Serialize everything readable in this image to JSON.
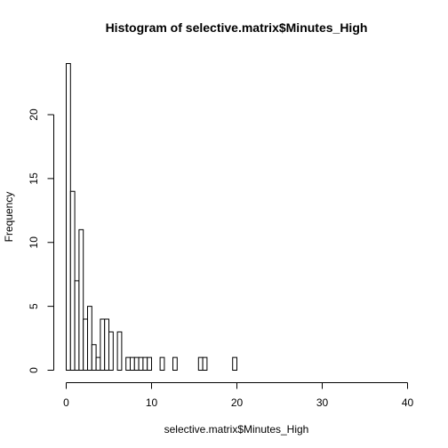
{
  "chart_data": {
    "type": "bar",
    "title": "Histogram of selective.matrix$Minutes_High",
    "xlabel": "selective.matrix$Minutes_High",
    "ylabel": "Frequency",
    "xlim": [
      0,
      40
    ],
    "ylim": [
      0,
      24
    ],
    "bin_width": 0.5,
    "x_ticks": [
      0,
      10,
      20,
      30,
      40
    ],
    "y_ticks": [
      0,
      5,
      10,
      15,
      20
    ],
    "grid": false,
    "bins": [
      {
        "start": 0.0,
        "end": 0.5,
        "count": 24
      },
      {
        "start": 0.5,
        "end": 1.0,
        "count": 14
      },
      {
        "start": 1.0,
        "end": 1.5,
        "count": 7
      },
      {
        "start": 1.5,
        "end": 2.0,
        "count": 11
      },
      {
        "start": 2.0,
        "end": 2.5,
        "count": 4
      },
      {
        "start": 2.5,
        "end": 3.0,
        "count": 5
      },
      {
        "start": 3.0,
        "end": 3.5,
        "count": 2
      },
      {
        "start": 3.5,
        "end": 4.0,
        "count": 1
      },
      {
        "start": 4.0,
        "end": 4.5,
        "count": 4
      },
      {
        "start": 4.5,
        "end": 5.0,
        "count": 4
      },
      {
        "start": 5.0,
        "end": 5.5,
        "count": 3
      },
      {
        "start": 5.5,
        "end": 6.0,
        "count": 0
      },
      {
        "start": 6.0,
        "end": 6.5,
        "count": 3
      },
      {
        "start": 6.5,
        "end": 7.0,
        "count": 0
      },
      {
        "start": 7.0,
        "end": 7.5,
        "count": 1
      },
      {
        "start": 7.5,
        "end": 8.0,
        "count": 1
      },
      {
        "start": 8.0,
        "end": 8.5,
        "count": 1
      },
      {
        "start": 8.5,
        "end": 9.0,
        "count": 1
      },
      {
        "start": 9.0,
        "end": 9.5,
        "count": 1
      },
      {
        "start": 9.5,
        "end": 10.0,
        "count": 1
      },
      {
        "start": 10.0,
        "end": 10.5,
        "count": 0
      },
      {
        "start": 10.5,
        "end": 11.0,
        "count": 0
      },
      {
        "start": 11.0,
        "end": 11.5,
        "count": 1
      },
      {
        "start": 11.5,
        "end": 12.0,
        "count": 0
      },
      {
        "start": 12.0,
        "end": 12.5,
        "count": 0
      },
      {
        "start": 12.5,
        "end": 13.0,
        "count": 1
      },
      {
        "start": 13.0,
        "end": 13.5,
        "count": 0
      },
      {
        "start": 13.5,
        "end": 14.0,
        "count": 0
      },
      {
        "start": 14.0,
        "end": 14.5,
        "count": 0
      },
      {
        "start": 14.5,
        "end": 15.0,
        "count": 0
      },
      {
        "start": 15.0,
        "end": 15.5,
        "count": 0
      },
      {
        "start": 15.5,
        "end": 16.0,
        "count": 1
      },
      {
        "start": 16.0,
        "end": 16.5,
        "count": 1
      },
      {
        "start": 16.5,
        "end": 17.0,
        "count": 0
      },
      {
        "start": 17.0,
        "end": 17.5,
        "count": 0
      },
      {
        "start": 17.5,
        "end": 18.0,
        "count": 0
      },
      {
        "start": 18.0,
        "end": 18.5,
        "count": 0
      },
      {
        "start": 18.5,
        "end": 19.0,
        "count": 0
      },
      {
        "start": 19.0,
        "end": 19.5,
        "count": 0
      },
      {
        "start": 19.5,
        "end": 20.0,
        "count": 1
      }
    ],
    "zero_bins_through": 40
  }
}
